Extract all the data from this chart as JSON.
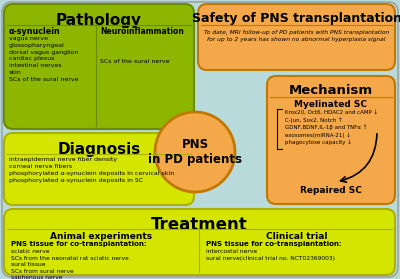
{
  "bg_color": "#b8dada",
  "pathology_color": "#8db600",
  "diagnosis_color": "#d4e600",
  "safety_color": "#f5a84a",
  "mechanism_color": "#f5a84a",
  "treatment_color": "#d4e600",
  "center_color": "#f5a84a",
  "pathology_edge": "#6a8a00",
  "diagnosis_edge": "#aab000",
  "safety_edge": "#c07800",
  "treatment_edge": "#aab000",
  "pathology_title": "Pathology",
  "diagnosis_title": "Diagnosis",
  "safety_title": "Safety of PNS transplantation",
  "mechanism_title": "Mechanism",
  "treatment_title": "Treatment",
  "center_text": "PNS\nin PD patients",
  "alpha_syn_title": "α-synuclein",
  "neuroinflam_title": "Neuroinflammation",
  "alpha_syn_items": "vagus nerve\nglossopharyngeal\ndorsal vagus ganglion\ncardiac plexus\nintestinal nerves\nskin\nSCs of the sural nerve",
  "neuroinflam_items": "SCs of the sural nerve",
  "safety_text": "To date, MRI follow-up of PD patients with PNS transplantation\nfor up to 2 years has shown no abnormal hyperplasia signal",
  "diagnosis_items": "intraepidermal nerve fiber density\ncorneal nerve fibers\nphosphorylated α-synuclein deposits in cervical skin\nphosphorylated α-synuclein deposits in SC",
  "myelinated_title": "Myelinated SC",
  "myelinated_items": "Krox20, Oct6, HDAC2 and cAMP ↓\nC-Jun, Sox2, Notch ↑\nGDNF,BDNF,IL-1β and TNFα ↑\nexosomes(miRNA-21) ↓\nphagocytose capacity ↓",
  "repaired_title": "Repaired SC",
  "animal_title": "Animal experiments",
  "animal_pns_label": "PNS tissue for co-transplantation:",
  "animal_items": "sciatic nerve\nSCs from the neonatal rat sciatic nerve\nsural tissue\nSCs from sural nerve\nsaphenous nerve",
  "clinical_title": "Clinical trial",
  "clinical_pns_label": "PNS tissue for co-transplantation:",
  "clinical_items": "intercostal nerve\nsural nerve(clinical trial no. NCT02369003)"
}
